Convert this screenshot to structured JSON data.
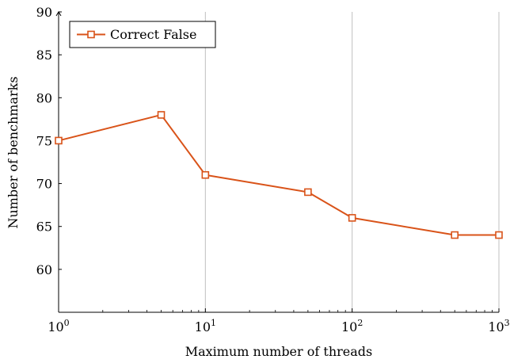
{
  "chart_data": {
    "type": "line",
    "title": "",
    "xlabel": "Maximum number of threads",
    "ylabel": "Number of benchmarks",
    "x_scale": "log",
    "xlim": [
      1,
      1000
    ],
    "ylim": [
      55,
      90
    ],
    "x_ticks": [
      {
        "value": 1,
        "base": "10",
        "exp": "0"
      },
      {
        "value": 10,
        "base": "10",
        "exp": "1"
      },
      {
        "value": 100,
        "base": "10",
        "exp": "2"
      },
      {
        "value": 1000,
        "base": "10",
        "exp": "3"
      }
    ],
    "y_ticks": [
      60,
      65,
      70,
      75,
      80,
      85,
      90
    ],
    "y_tick_labels": [
      "60",
      "65",
      "70",
      "75",
      "80",
      "85",
      "90"
    ],
    "grid": "vertical-major",
    "legend_position": "top-left",
    "series": [
      {
        "name": "Correct False",
        "color": "#d95319",
        "marker": "square",
        "x": [
          1,
          5,
          10,
          50,
          100,
          500,
          1000
        ],
        "y": [
          75,
          78,
          71,
          69,
          66,
          64,
          64
        ]
      }
    ]
  }
}
